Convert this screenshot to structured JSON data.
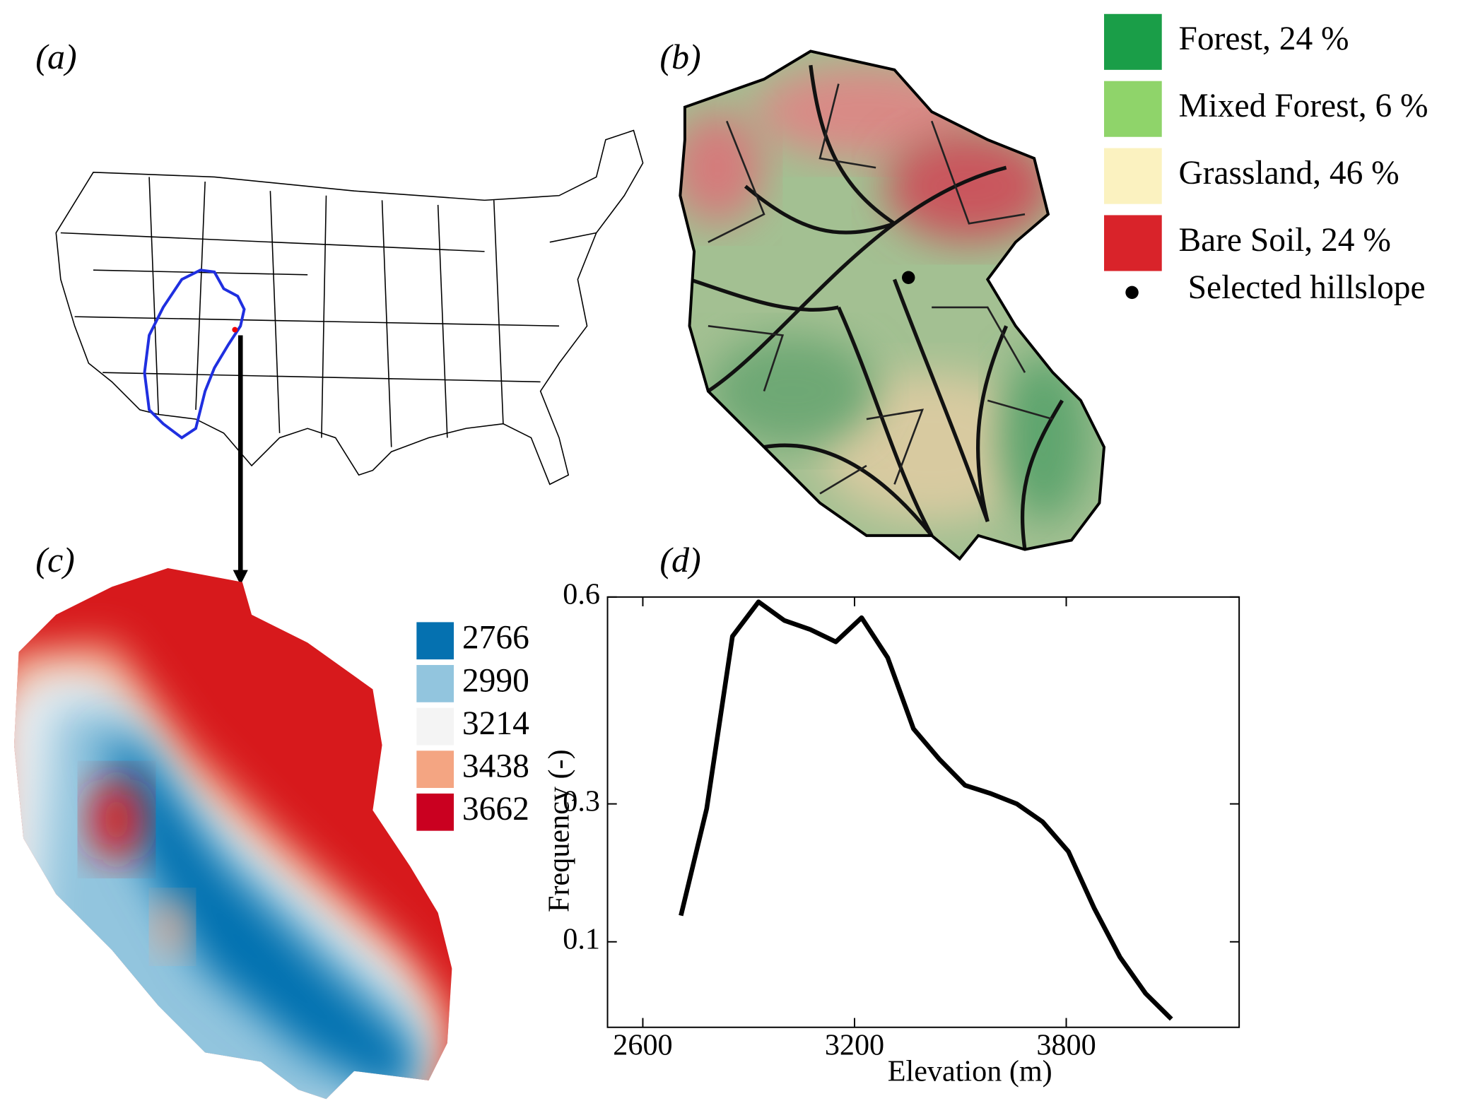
{
  "panel_labels": [
    "(a)",
    "(b)",
    "(c)",
    "(d)"
  ],
  "land_cover_legend": [
    {
      "label": "Forest, 24 %",
      "color": "#1a9e48"
    },
    {
      "label": "Mixed Forest, 6 %",
      "color": "#8fd46a"
    },
    {
      "label": "Grassland, 46 %",
      "color": "#fbf2c0"
    },
    {
      "label": "Bare Soil, 24 %",
      "color": "#d9232a"
    }
  ],
  "hillslope_legend": "Selected hillslope",
  "elevation_legend": [
    {
      "label": 2766,
      "color": "#0571b0"
    },
    {
      "label": 2990,
      "color": "#92c5de"
    },
    {
      "label": 3214,
      "color": "#f4f4f4"
    },
    {
      "label": 3438,
      "color": "#f4a582"
    },
    {
      "label": 3662,
      "color": "#ca0020"
    }
  ],
  "chart_data": {
    "type": "line",
    "x_label": "Elevation (m)",
    "y_label": "Frequency (-)",
    "x": [
      2708,
      2781,
      2854,
      2928,
      3001,
      3074,
      3147,
      3220,
      3294,
      3367,
      3440,
      3513,
      3586,
      3660,
      3733,
      3806,
      3879,
      3952,
      4025,
      4098
    ],
    "series": [
      {
        "color": "#000000",
        "values": [
          0.138,
          0.293,
          0.543,
          0.593,
          0.566,
          0.553,
          0.535,
          0.57,
          0.512,
          0.409,
          0.365,
          0.327,
          0.315,
          0.3,
          0.274,
          0.231,
          0.149,
          0.078,
          0.025,
          -0.012
        ]
      }
    ],
    "xlim": [
      2500,
      4290
    ],
    "xticks": [
      2600,
      3200,
      3800
    ],
    "ylim": [
      -0.024,
      0.6
    ],
    "yticks": [
      0.6,
      0.3,
      0.1
    ]
  }
}
